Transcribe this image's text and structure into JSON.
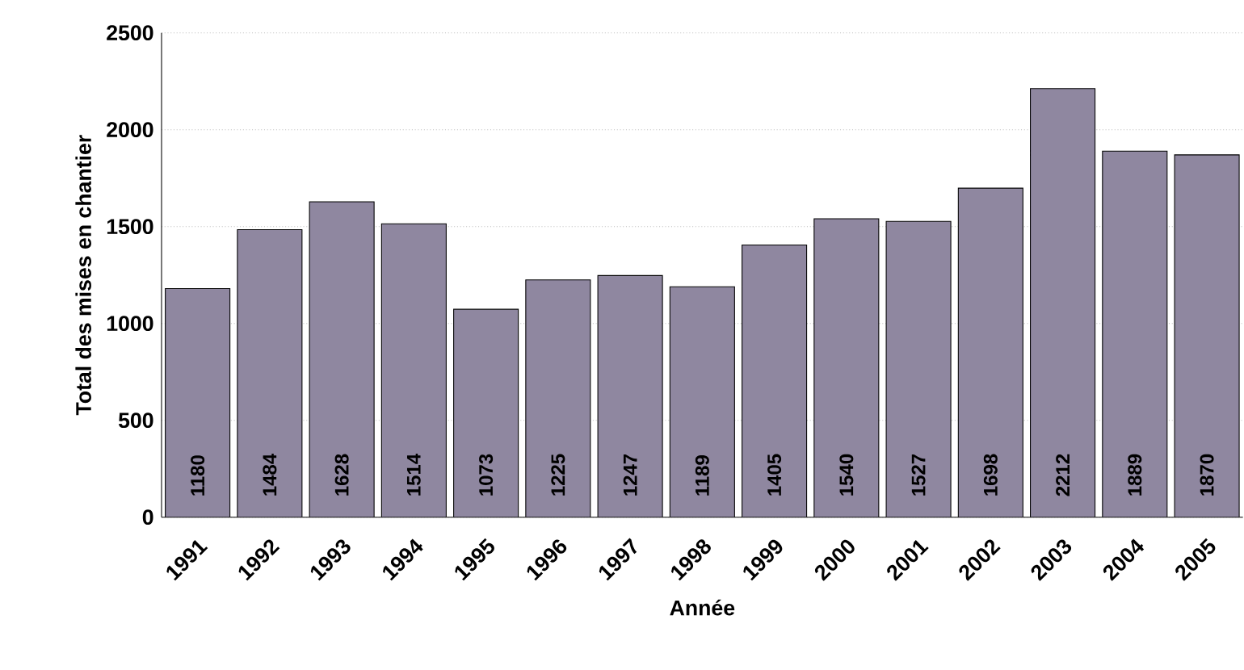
{
  "chart_data": {
    "type": "bar",
    "xlabel": "Année",
    "ylabel": "Total des mises en chantier",
    "categories": [
      "1991",
      "1992",
      "1993",
      "1994",
      "1995",
      "1996",
      "1997",
      "1998",
      "1999",
      "2000",
      "2001",
      "2002",
      "2003",
      "2004",
      "2005"
    ],
    "values": [
      1180,
      1484,
      1628,
      1514,
      1073,
      1225,
      1247,
      1189,
      1405,
      1540,
      1527,
      1698,
      2212,
      1889,
      1870
    ],
    "color": "#8f87a0",
    "ylim": [
      0,
      2500
    ],
    "yticks": [
      0,
      500,
      1000,
      1500,
      2000,
      2500
    ],
    "grid": "y",
    "data_labels": true
  }
}
